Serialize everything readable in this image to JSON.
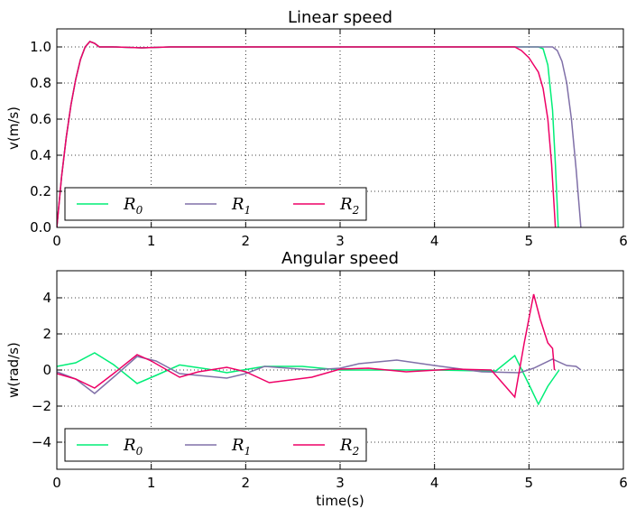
{
  "chart_data": [
    {
      "type": "line",
      "title": "Linear speed",
      "xlabel": "",
      "ylabel": "v(m/s)",
      "xlim": [
        0,
        6
      ],
      "ylim": [
        0,
        1.1
      ],
      "xticks": [
        "0",
        "1",
        "2",
        "3",
        "4",
        "5",
        "6"
      ],
      "yticks": [
        "0.0",
        "0.2",
        "0.4",
        "0.6",
        "0.8",
        "1.0"
      ],
      "grid": true,
      "legend_position": "lower-left",
      "series": [
        {
          "name": "R",
          "sub": "0",
          "color": "#00ee77",
          "points": [
            [
              0,
              0
            ],
            [
              0.05,
              0.28
            ],
            [
              0.1,
              0.5
            ],
            [
              0.15,
              0.68
            ],
            [
              0.2,
              0.82
            ],
            [
              0.25,
              0.93
            ],
            [
              0.3,
              1.0
            ],
            [
              0.35,
              1.03
            ],
            [
              0.4,
              1.02
            ],
            [
              0.45,
              1.0
            ],
            [
              0.6,
              1.0
            ],
            [
              0.9,
              0.995
            ],
            [
              1.2,
              1.0
            ],
            [
              2,
              1.0
            ],
            [
              3,
              1.0
            ],
            [
              4,
              1.0
            ],
            [
              4.9,
              1.0
            ],
            [
              5.0,
              1.0
            ],
            [
              5.1,
              1.0
            ],
            [
              5.15,
              0.99
            ],
            [
              5.2,
              0.9
            ],
            [
              5.25,
              0.65
            ],
            [
              5.28,
              0.35
            ],
            [
              5.31,
              0.0
            ]
          ]
        },
        {
          "name": "R",
          "sub": "1",
          "color": "#8070a8",
          "points": [
            [
              0,
              0
            ],
            [
              0.05,
              0.28
            ],
            [
              0.1,
              0.5
            ],
            [
              0.15,
              0.68
            ],
            [
              0.2,
              0.82
            ],
            [
              0.25,
              0.93
            ],
            [
              0.3,
              1.0
            ],
            [
              0.35,
              1.03
            ],
            [
              0.4,
              1.02
            ],
            [
              0.45,
              1.0
            ],
            [
              0.6,
              1.0
            ],
            [
              0.9,
              0.995
            ],
            [
              1.2,
              1.0
            ],
            [
              2,
              1.0
            ],
            [
              3,
              1.0
            ],
            [
              4,
              1.0
            ],
            [
              5.0,
              1.0
            ],
            [
              5.2,
              1.0
            ],
            [
              5.25,
              1.0
            ],
            [
              5.3,
              0.98
            ],
            [
              5.35,
              0.92
            ],
            [
              5.4,
              0.8
            ],
            [
              5.45,
              0.6
            ],
            [
              5.5,
              0.32
            ],
            [
              5.55,
              0.0
            ]
          ]
        },
        {
          "name": "R",
          "sub": "2",
          "color": "#ee0066",
          "points": [
            [
              0,
              0
            ],
            [
              0.05,
              0.28
            ],
            [
              0.1,
              0.5
            ],
            [
              0.15,
              0.68
            ],
            [
              0.2,
              0.82
            ],
            [
              0.25,
              0.93
            ],
            [
              0.3,
              1.0
            ],
            [
              0.35,
              1.03
            ],
            [
              0.4,
              1.02
            ],
            [
              0.45,
              1.0
            ],
            [
              0.6,
              1.0
            ],
            [
              0.9,
              0.995
            ],
            [
              1.2,
              1.0
            ],
            [
              2,
              1.0
            ],
            [
              3,
              1.0
            ],
            [
              4,
              1.0
            ],
            [
              4.85,
              1.0
            ],
            [
              4.92,
              0.98
            ],
            [
              5.0,
              0.94
            ],
            [
              5.05,
              0.9
            ],
            [
              5.1,
              0.86
            ],
            [
              5.15,
              0.77
            ],
            [
              5.2,
              0.6
            ],
            [
              5.24,
              0.35
            ],
            [
              5.28,
              0.0
            ]
          ]
        }
      ]
    },
    {
      "type": "line",
      "title": "Angular speed",
      "xlabel": "time(s)",
      "ylabel": "w(rad/s)",
      "xlim": [
        0,
        6
      ],
      "ylim": [
        -5.5,
        5.5
      ],
      "xticks": [
        "0",
        "1",
        "2",
        "3",
        "4",
        "5",
        "6"
      ],
      "yticks": [
        "−4",
        "−2",
        "0",
        "2",
        "4"
      ],
      "grid": true,
      "legend_position": "lower-left",
      "series": [
        {
          "name": "R",
          "sub": "0",
          "color": "#00ee77",
          "points": [
            [
              0,
              0.2
            ],
            [
              0.2,
              0.4
            ],
            [
              0.4,
              0.95
            ],
            [
              0.6,
              0.3
            ],
            [
              0.85,
              -0.75
            ],
            [
              1.05,
              -0.3
            ],
            [
              1.3,
              0.28
            ],
            [
              1.6,
              0.05
            ],
            [
              1.8,
              -0.15
            ],
            [
              2.2,
              0.2
            ],
            [
              2.6,
              0.2
            ],
            [
              3,
              0.0
            ],
            [
              3.5,
              0.0
            ],
            [
              4.0,
              0.0
            ],
            [
              4.5,
              -0.05
            ],
            [
              4.65,
              -0.05
            ],
            [
              4.85,
              0.8
            ],
            [
              5.0,
              -0.8
            ],
            [
              5.1,
              -1.9
            ],
            [
              5.2,
              -0.9
            ],
            [
              5.28,
              -0.3
            ],
            [
              5.32,
              0.0
            ]
          ]
        },
        {
          "name": "R",
          "sub": "1",
          "color": "#8070a8",
          "points": [
            [
              0,
              -0.1
            ],
            [
              0.2,
              -0.5
            ],
            [
              0.4,
              -1.3
            ],
            [
              0.6,
              -0.4
            ],
            [
              0.85,
              0.75
            ],
            [
              1.05,
              0.5
            ],
            [
              1.3,
              -0.2
            ],
            [
              1.8,
              -0.45
            ],
            [
              2.0,
              -0.2
            ],
            [
              2.2,
              0.2
            ],
            [
              2.7,
              0.0
            ],
            [
              3,
              0.1
            ],
            [
              3.2,
              0.35
            ],
            [
              3.6,
              0.55
            ],
            [
              4.0,
              0.25
            ],
            [
              4.5,
              -0.1
            ],
            [
              4.9,
              -0.15
            ],
            [
              5.05,
              0.1
            ],
            [
              5.25,
              0.6
            ],
            [
              5.4,
              0.25
            ],
            [
              5.5,
              0.2
            ],
            [
              5.55,
              0.0
            ]
          ]
        },
        {
          "name": "R",
          "sub": "2",
          "color": "#ee0066",
          "points": [
            [
              0,
              -0.2
            ],
            [
              0.2,
              -0.5
            ],
            [
              0.4,
              -1.0
            ],
            [
              0.6,
              -0.2
            ],
            [
              0.85,
              0.85
            ],
            [
              1.0,
              0.5
            ],
            [
              1.3,
              -0.4
            ],
            [
              1.5,
              -0.1
            ],
            [
              1.8,
              0.15
            ],
            [
              2.0,
              -0.1
            ],
            [
              2.25,
              -0.7
            ],
            [
              2.7,
              -0.4
            ],
            [
              3.0,
              0.05
            ],
            [
              3.3,
              0.1
            ],
            [
              3.7,
              -0.1
            ],
            [
              4.2,
              0.05
            ],
            [
              4.6,
              0.0
            ],
            [
              4.85,
              -1.5
            ],
            [
              4.95,
              1.5
            ],
            [
              5.05,
              4.2
            ],
            [
              5.12,
              2.8
            ],
            [
              5.2,
              1.5
            ],
            [
              5.25,
              1.2
            ],
            [
              5.27,
              0.0
            ]
          ]
        }
      ]
    }
  ]
}
